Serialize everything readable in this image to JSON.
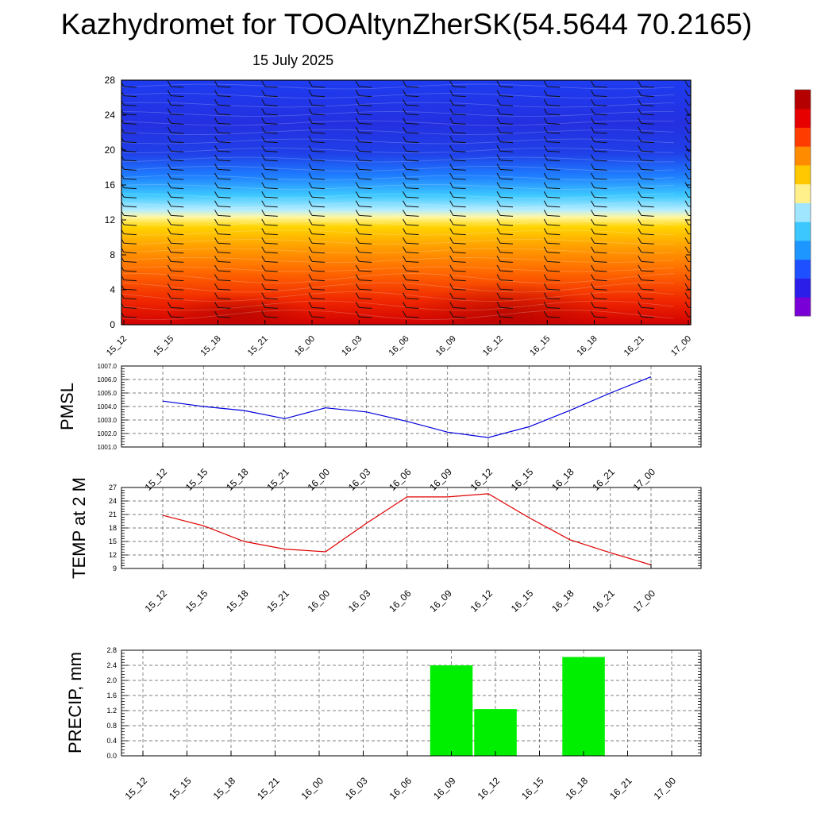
{
  "header": {
    "title": "Kazhydromet for TOOAltynZherSK(54.5644 70.2165)",
    "subtitle": "15 July 2025"
  },
  "chart_data": [
    {
      "type": "heatmap",
      "name": "meteogram-cross-section",
      "x_tick_labels": [
        "15_12",
        "15_15",
        "15_18",
        "15_21",
        "16_00",
        "16_03",
        "16_06",
        "16_09",
        "16_12",
        "16_15",
        "16_18",
        "16_21",
        "17_00"
      ],
      "y_tick_labels": [
        "0",
        "4",
        "8",
        "12",
        "16",
        "20",
        "24",
        "28"
      ],
      "ylim": [
        0,
        28
      ],
      "colorbar_colors": [
        "#7a00d8",
        "#2a1ee8",
        "#1e50ff",
        "#1e96ff",
        "#3cc8ff",
        "#a0e6ff",
        "#fff08c",
        "#ffc800",
        "#ff8c00",
        "#ff3c00",
        "#e60000",
        "#b40000"
      ],
      "has_wind_barbs": true
    },
    {
      "type": "line",
      "name": "pmsl",
      "ylabel": "PMSL",
      "categories": [
        "15_12",
        "15_15",
        "15_18",
        "15_21",
        "16_00",
        "16_03",
        "16_06",
        "16_09",
        "16_12",
        "16_15",
        "16_18",
        "16_21",
        "17_00"
      ],
      "values": [
        1004.4,
        1004.0,
        1003.7,
        1003.1,
        1003.9,
        1003.6,
        1002.9,
        1002.1,
        1001.7,
        1002.5,
        1003.7,
        1005.0,
        1006.2
      ],
      "ylim": [
        1001.0,
        1007.0
      ],
      "y_tick_labels": [
        "1001.0",
        "1002.0",
        "1003.0",
        "1004.0",
        "1005.0",
        "1006.0",
        "1007.0"
      ],
      "color": "#0000dd",
      "grid": true
    },
    {
      "type": "line",
      "name": "temp2m",
      "ylabel": "TEMP at 2 M",
      "categories": [
        "15_12",
        "15_15",
        "15_18",
        "15_21",
        "16_00",
        "16_03",
        "16_06",
        "16_09",
        "16_12",
        "16_15",
        "16_18",
        "16_21",
        "17_00"
      ],
      "values": [
        20.8,
        18.5,
        15.0,
        13.3,
        12.7,
        19.0,
        24.9,
        24.9,
        25.6,
        20.3,
        15.4,
        12.5,
        9.8
      ],
      "ylim": [
        9,
        27
      ],
      "y_tick_labels": [
        "9",
        "12",
        "15",
        "18",
        "21",
        "24",
        "27"
      ],
      "color": "#e00000",
      "grid": true
    },
    {
      "type": "bar",
      "name": "precip",
      "ylabel": "PRECIP, mm",
      "categories": [
        "15_12",
        "15_15",
        "15_18",
        "15_21",
        "16_00",
        "16_03",
        "16_06",
        "16_09",
        "16_12",
        "16_15",
        "16_18",
        "16_21",
        "17_00"
      ],
      "values": [
        0,
        0,
        0,
        0,
        0,
        0,
        0,
        2.4,
        1.24,
        0,
        2.62,
        0,
        0
      ],
      "ylim": [
        0.0,
        2.8
      ],
      "y_tick_labels": [
        "0.0",
        "0.4",
        "0.8",
        "1.2",
        "1.6",
        "2.0",
        "2.4",
        "2.8"
      ],
      "color": "#00ee00",
      "grid": true
    }
  ]
}
